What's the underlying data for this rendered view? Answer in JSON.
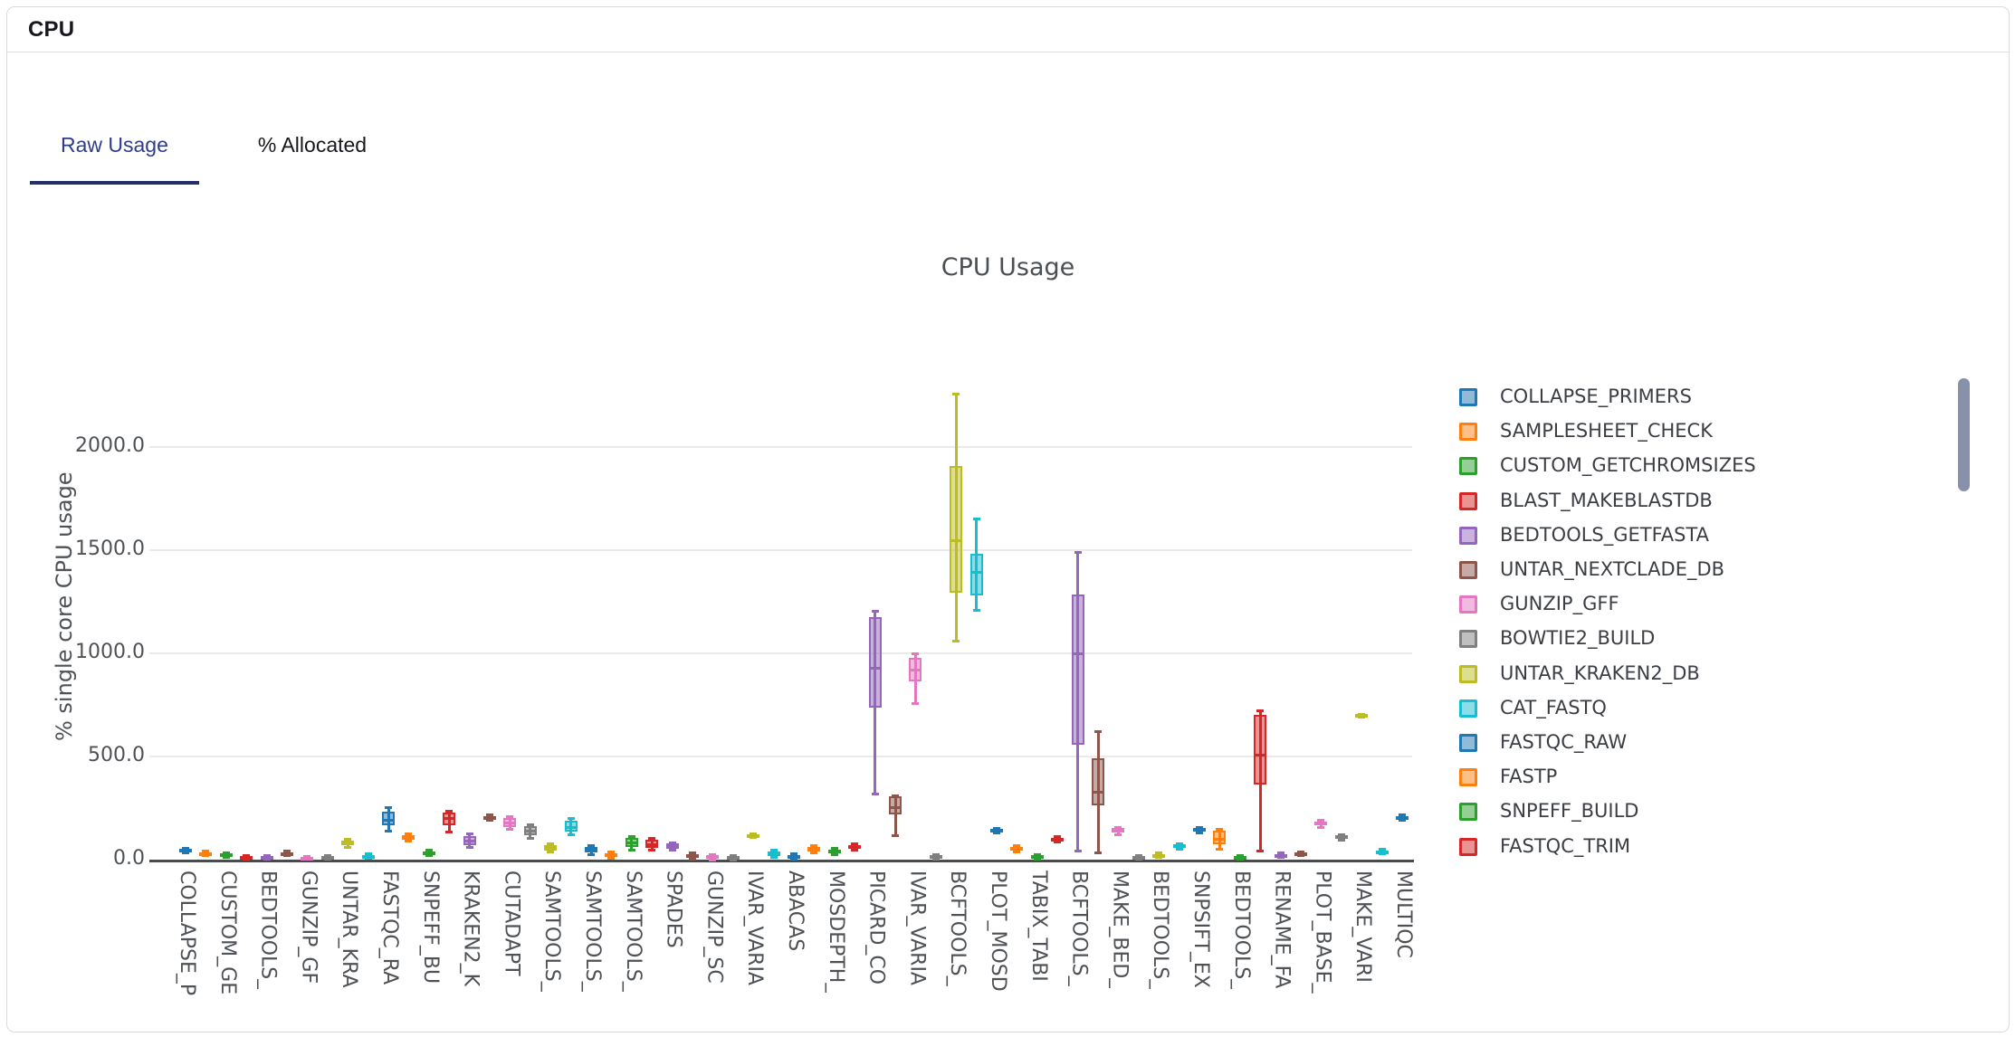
{
  "card": {
    "title": "CPU"
  },
  "tabs": [
    {
      "label": "Raw Usage",
      "active": true
    },
    {
      "label": "% Allocated",
      "active": false
    }
  ],
  "chart_data": {
    "type": "box",
    "title": "CPU Usage",
    "ylabel": "% single core CPU usage",
    "yticks": [
      0,
      500,
      1000,
      1500,
      2000
    ],
    "ytick_labels": [
      "0.0",
      "500.0",
      "1000.0",
      "1500.0",
      "2000.0"
    ],
    "ylim": [
      0,
      2350
    ],
    "grid": true,
    "palette": [
      "#1f77b4",
      "#ff7f0e",
      "#2ca02c",
      "#d62728",
      "#9467bd",
      "#8c564b",
      "#e377c2",
      "#7f7f7f",
      "#bcbd22",
      "#17becf"
    ],
    "x_label_every": 2,
    "x_tick_labels": [
      "COLLAPSE_P",
      "CUSTOM_GE",
      "BEDTOOLS_",
      "GUNZIP_GF",
      "UNTAR_KRA",
      "FASTQC_RA",
      "SNPEFF_BU",
      "KRAKEN2_K",
      "CUTADAPT",
      "SAMTOOLS_",
      "SAMTOOLS_",
      "SAMTOOLS_",
      "SPADES",
      "GUNZIP_SC",
      "IVAR_VARIA",
      "ABACAS",
      "MOSDEPTH_",
      "PICARD_CO",
      "IVAR_VARIA",
      "BCFTOOLS_",
      "PLOT_MOSD",
      "TABIX_TABI",
      "BCFTOOLS_",
      "MAKE_BED_",
      "BEDTOOLS_",
      "SNPSIFT_EX",
      "BEDTOOLS_",
      "RENAME_FA",
      "PLOT_BASE_",
      "MAKE_VARI",
      "MULTIQC"
    ],
    "boxes_format": [
      "low",
      "q1",
      "median",
      "q3",
      "high"
    ],
    "boxes": [
      [
        35,
        42,
        47,
        52,
        58
      ],
      [
        22,
        27,
        32,
        36,
        42
      ],
      [
        15,
        20,
        25,
        29,
        34
      ],
      [
        6,
        10,
        14,
        18,
        24
      ],
      [
        5,
        9,
        13,
        17,
        22
      ],
      [
        22,
        27,
        31,
        36,
        42
      ],
      [
        3,
        6,
        10,
        14,
        18
      ],
      [
        5,
        9,
        13,
        17,
        22
      ],
      [
        62,
        70,
        80,
        92,
        99
      ],
      [
        7,
        10,
        16,
        24,
        30
      ],
      [
        140,
        167,
        193,
        233,
        255
      ],
      [
        90,
        97,
        108,
        119,
        126
      ],
      [
        22,
        27,
        33,
        41,
        48
      ],
      [
        136,
        167,
        202,
        228,
        238
      ],
      [
        60,
        70,
        90,
        115,
        128
      ],
      [
        195,
        200,
        206,
        212,
        218
      ],
      [
        148,
        160,
        180,
        200,
        210
      ],
      [
        105,
        119,
        140,
        162,
        172
      ],
      [
        40,
        46,
        58,
        72,
        80
      ],
      [
        125,
        135,
        160,
        188,
        200
      ],
      [
        28,
        35,
        48,
        62,
        70
      ],
      [
        10,
        14,
        22,
        32,
        38
      ],
      [
        50,
        60,
        82,
        105,
        115
      ],
      [
        50,
        58,
        75,
        95,
        105
      ],
      [
        48,
        54,
        65,
        78,
        85
      ],
      [
        6,
        10,
        18,
        28,
        34
      ],
      [
        2,
        5,
        12,
        22,
        28
      ],
      [
        0,
        3,
        10,
        18,
        24
      ],
      [
        108,
        113,
        118,
        123,
        128
      ],
      [
        12,
        18,
        28,
        40,
        48
      ],
      [
        5,
        9,
        16,
        24,
        30
      ],
      [
        35,
        40,
        50,
        62,
        70
      ],
      [
        26,
        31,
        40,
        50,
        56
      ],
      [
        48,
        53,
        62,
        72,
        78
      ],
      [
        320,
        738,
        930,
        1177,
        1207
      ],
      [
        120,
        220,
        255,
        305,
        312
      ],
      [
        760,
        865,
        920,
        980,
        1000
      ],
      [
        5,
        10,
        15,
        20,
        25
      ],
      [
        1062,
        1295,
        1550,
        1910,
        2260
      ],
      [
        1210,
        1282,
        1396,
        1484,
        1653
      ],
      [
        130,
        136,
        142,
        148,
        155
      ],
      [
        40,
        48,
        55,
        62,
        68
      ],
      [
        6,
        10,
        15,
        20,
        26
      ],
      [
        88,
        94,
        100,
        107,
        113
      ],
      [
        44,
        557,
        1000,
        1287,
        1490
      ],
      [
        35,
        263,
        330,
        491,
        623
      ],
      [
        122,
        130,
        140,
        152,
        160
      ],
      [
        4,
        8,
        13,
        18,
        24
      ],
      [
        12,
        17,
        22,
        28,
        34
      ],
      [
        52,
        58,
        66,
        74,
        80
      ],
      [
        132,
        138,
        145,
        152,
        158
      ],
      [
        53,
        75,
        100,
        140,
        148
      ],
      [
        5,
        8,
        13,
        18,
        23
      ],
      [
        44,
        365,
        510,
        702,
        724
      ],
      [
        12,
        16,
        21,
        27,
        33
      ],
      [
        20,
        24,
        29,
        35,
        40
      ],
      [
        160,
        168,
        176,
        185,
        192
      ],
      [
        98,
        104,
        110,
        117,
        124
      ],
      [
        695,
        698,
        701,
        704,
        708
      ],
      [
        30,
        35,
        40,
        46,
        52
      ],
      [
        195,
        200,
        206,
        212,
        218
      ]
    ]
  },
  "legend": {
    "items": [
      {
        "label": "COLLAPSE_PRIMERS",
        "color": "#1f77b4"
      },
      {
        "label": "SAMPLESHEET_CHECK",
        "color": "#ff7f0e"
      },
      {
        "label": "CUSTOM_GETCHROMSIZES",
        "color": "#2ca02c"
      },
      {
        "label": "BLAST_MAKEBLASTDB",
        "color": "#d62728"
      },
      {
        "label": "BEDTOOLS_GETFASTA",
        "color": "#9467bd"
      },
      {
        "label": "UNTAR_NEXTCLADE_DB",
        "color": "#8c564b"
      },
      {
        "label": "GUNZIP_GFF",
        "color": "#e377c2"
      },
      {
        "label": "BOWTIE2_BUILD",
        "color": "#7f7f7f"
      },
      {
        "label": "UNTAR_KRAKEN2_DB",
        "color": "#bcbd22"
      },
      {
        "label": "CAT_FASTQ",
        "color": "#17becf"
      },
      {
        "label": "FASTQC_RAW",
        "color": "#1f77b4"
      },
      {
        "label": "FASTP",
        "color": "#ff7f0e"
      },
      {
        "label": "SNPEFF_BUILD",
        "color": "#2ca02c"
      },
      {
        "label": "FASTQC_TRIM",
        "color": "#d62728"
      }
    ]
  }
}
